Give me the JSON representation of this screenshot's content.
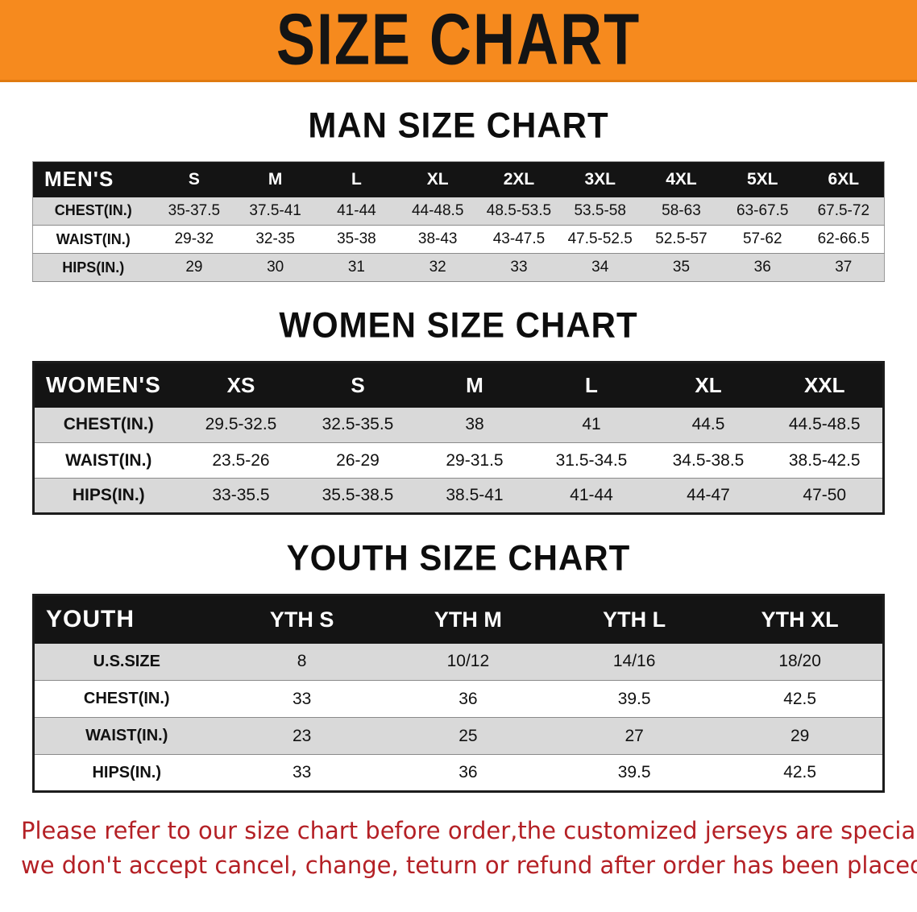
{
  "banner": {
    "title": "SIZE CHART",
    "background": "#f68a1e"
  },
  "colors": {
    "banner_orange": "#f68a1e",
    "table_header_bg": "#141414",
    "row_alt_gray": "#d9d9d9",
    "note_red": "#b42025"
  },
  "sections": [
    {
      "heading": "MAN SIZE CHART",
      "corner_label": "MEN'S",
      "columns": [
        "S",
        "M",
        "L",
        "XL",
        "2XL",
        "3XL",
        "4XL",
        "5XL",
        "6XL"
      ],
      "rows": [
        {
          "label": "CHEST(IN.)",
          "values": [
            "35-37.5",
            "37.5-41",
            "41-44",
            "44-48.5",
            "48.5-53.5",
            "53.5-58",
            "58-63",
            "63-67.5",
            "67.5-72"
          ]
        },
        {
          "label": "WAIST(IN.)",
          "values": [
            "29-32",
            "32-35",
            "35-38",
            "38-43",
            "43-47.5",
            "47.5-52.5",
            "52.5-57",
            "57-62",
            "62-66.5"
          ]
        },
        {
          "label": "HIPS(IN.)",
          "values": [
            "29",
            "30",
            "31",
            "32",
            "33",
            "34",
            "35",
            "36",
            "37"
          ]
        }
      ]
    },
    {
      "heading": "WOMEN SIZE CHART",
      "corner_label": "WOMEN'S",
      "columns": [
        "XS",
        "S",
        "M",
        "L",
        "XL",
        "XXL"
      ],
      "rows": [
        {
          "label": "CHEST(IN.)",
          "values": [
            "29.5-32.5",
            "32.5-35.5",
            "38",
            "41",
            "44.5",
            "44.5-48.5"
          ]
        },
        {
          "label": "WAIST(IN.)",
          "values": [
            "23.5-26",
            "26-29",
            "29-31.5",
            "31.5-34.5",
            "34.5-38.5",
            "38.5-42.5"
          ]
        },
        {
          "label": "HIPS(IN.)",
          "values": [
            "33-35.5",
            "35.5-38.5",
            "38.5-41",
            "41-44",
            "44-47",
            "47-50"
          ]
        }
      ]
    },
    {
      "heading": "YOUTH SIZE CHART",
      "corner_label": "YOUTH",
      "columns": [
        "YTH S",
        "YTH M",
        "YTH L",
        "YTH XL"
      ],
      "rows": [
        {
          "label": "U.S.SIZE",
          "values": [
            "8",
            "10/12",
            "14/16",
            "18/20"
          ]
        },
        {
          "label": "CHEST(IN.)",
          "values": [
            "33",
            "36",
            "39.5",
            "42.5"
          ]
        },
        {
          "label": "WAIST(IN.)",
          "values": [
            "23",
            "25",
            "27",
            "29"
          ]
        },
        {
          "label": "HIPS(IN.)",
          "values": [
            "33",
            "36",
            "39.5",
            "42.5"
          ]
        }
      ]
    }
  ],
  "note": {
    "line1": "Please refer to our size chart before order,the customized jerseys are special products,",
    "line2": "we don't accept cancel, change, teturn or refund after order has been placed!"
  }
}
